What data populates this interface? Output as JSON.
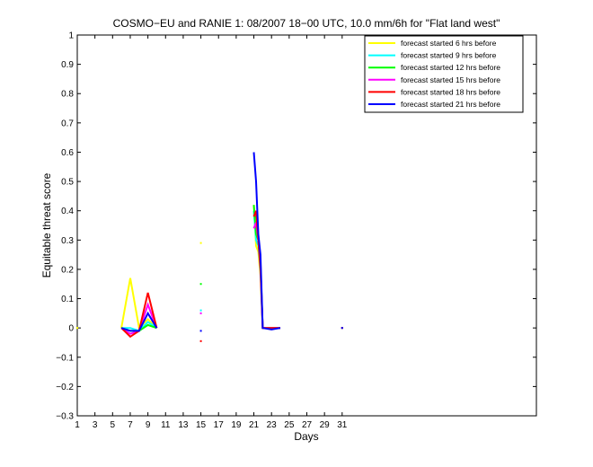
{
  "chart_data": {
    "type": "line",
    "title": "COSMO−EU and RANIE 1: 08/2007 18−00 UTC, 10.0 mm/6h for \"Flat land west\"",
    "xlabel": "Days",
    "ylabel": "Equitable threat score",
    "xlim": [
      1,
      53
    ],
    "ylim": [
      -0.3,
      1
    ],
    "xticks": [
      1,
      3,
      5,
      7,
      9,
      11,
      13,
      15,
      17,
      19,
      21,
      23,
      25,
      27,
      29,
      31
    ],
    "yticks": [
      -0.3,
      -0.2,
      -0.1,
      0,
      0.1,
      0.2,
      0.3,
      0.4,
      0.5,
      0.6,
      0.7,
      0.8,
      0.9,
      1
    ],
    "ytick_labels": [
      "−0.3",
      "−0.2",
      "−0.1",
      "0",
      "0.1",
      "0.2",
      "0.3",
      "0.4",
      "0.5",
      "0.6",
      "0.7",
      "0.8",
      "0.9",
      "1"
    ],
    "grid": false,
    "legend_position": "top-right",
    "series": [
      {
        "name": "forecast started 6 hrs before",
        "color": "#ffff00",
        "x": [
          1,
          6,
          7,
          8,
          9,
          10,
          15,
          21,
          21.25,
          21.5,
          21.75,
          22,
          23,
          24,
          31
        ],
        "y": [
          0,
          0,
          0.17,
          0,
          0.03,
          0,
          0.29,
          0.42,
          0.28,
          0.26,
          0.18,
          0,
          0,
          0,
          0
        ]
      },
      {
        "name": "forecast started 9 hrs before",
        "color": "#00ffff",
        "x": [
          6,
          7,
          8,
          9,
          10,
          15,
          21,
          21.25,
          21.5,
          21.75,
          22,
          23,
          24,
          31
        ],
        "y": [
          0,
          0,
          -0.01,
          0.02,
          0,
          0.06,
          0.4,
          0.3,
          0.28,
          0.2,
          0,
          0,
          0,
          0
        ]
      },
      {
        "name": "forecast started 12 hrs before",
        "color": "#00ff00",
        "x": [
          6,
          7,
          8,
          9,
          10,
          15,
          21,
          21.25,
          21.5,
          21.75,
          22,
          23,
          24,
          31
        ],
        "y": [
          0,
          -0.01,
          -0.01,
          0.01,
          0,
          0.15,
          0.42,
          0.32,
          0.3,
          0.22,
          0,
          0,
          0,
          0
        ]
      },
      {
        "name": "forecast started 15 hrs before",
        "color": "#ff00ff",
        "x": [
          6,
          7,
          8,
          9,
          10,
          15,
          21,
          21.25,
          21.5,
          21.75,
          22,
          23,
          24,
          31
        ],
        "y": [
          0,
          -0.02,
          -0.01,
          0.08,
          0,
          0.05,
          0.34,
          0.36,
          0.3,
          0.22,
          0,
          0,
          0,
          0
        ]
      },
      {
        "name": "forecast started 18 hrs before",
        "color": "#ff0000",
        "x": [
          6,
          7,
          8,
          9,
          10,
          15,
          21,
          21.25,
          21.5,
          21.75,
          22,
          23,
          24,
          31
        ],
        "y": [
          0,
          -0.03,
          -0.01,
          0.12,
          0,
          -0.045,
          0.38,
          0.4,
          0.3,
          0.2,
          0,
          0,
          0,
          0
        ]
      },
      {
        "name": "forecast started 21 hrs before",
        "color": "#0000ff",
        "x": [
          6,
          7,
          8,
          9,
          10,
          15,
          21,
          21.25,
          21.5,
          21.75,
          22,
          23,
          24,
          31
        ],
        "y": [
          0,
          -0.01,
          -0.01,
          0.05,
          0,
          -0.01,
          0.6,
          0.5,
          0.32,
          0.25,
          0,
          -0.005,
          0,
          0
        ]
      }
    ]
  }
}
